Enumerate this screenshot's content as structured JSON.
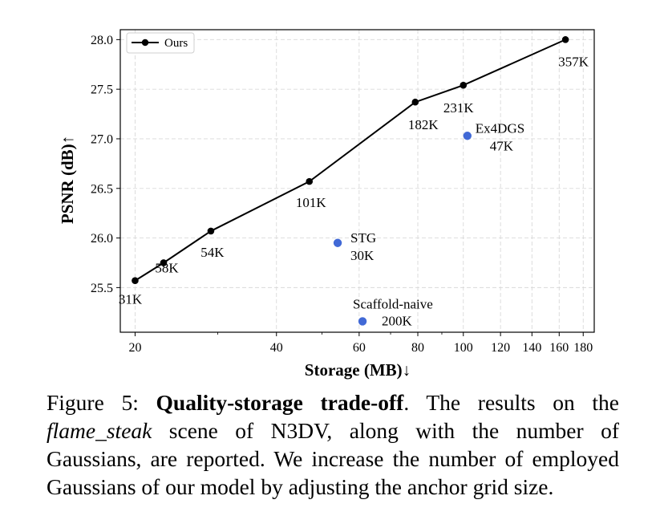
{
  "chart_data": {
    "type": "line",
    "xlabel": "Storage (MB)↓",
    "ylabel": "PSNR (dB)↑",
    "xscale": "log",
    "xlim": [
      18.6,
      190
    ],
    "ylim": [
      25.05,
      28.1
    ],
    "xticks": [
      20,
      40,
      60,
      80,
      100,
      120,
      140,
      160,
      180
    ],
    "xtick_labels": [
      "20",
      "40",
      "60",
      "80",
      "100",
      "120",
      "140",
      "160",
      "180"
    ],
    "yticks": [
      25.5,
      26.0,
      26.5,
      27.0,
      27.5,
      28.0
    ],
    "ytick_labels": [
      "25.5",
      "26.0",
      "26.5",
      "27.0",
      "27.5",
      "28.0"
    ],
    "grid": true,
    "legend_position": "top-left",
    "series": [
      {
        "name": "Ours",
        "color": "#000000",
        "points": [
          {
            "x": 20,
            "y": 25.57,
            "label": "31K"
          },
          {
            "x": 23,
            "y": 25.75,
            "label": "58K"
          },
          {
            "x": 29,
            "y": 26.07,
            "label": "54K"
          },
          {
            "x": 47,
            "y": 26.57,
            "label": "101K"
          },
          {
            "x": 79,
            "y": 27.37,
            "label": "182K"
          },
          {
            "x": 100,
            "y": 27.54,
            "label": "231K"
          },
          {
            "x": 165,
            "y": 28.0,
            "label": "357K"
          }
        ]
      }
    ],
    "others": [
      {
        "name": "Ex4DGS",
        "x": 102,
        "y": 27.03,
        "label": "47K",
        "color": "#4169d6"
      },
      {
        "name": "STG",
        "x": 54,
        "y": 25.95,
        "label": "30K",
        "color": "#4169d6"
      },
      {
        "name": "Scaffold-naive",
        "x": 61,
        "y": 25.16,
        "label": "200K",
        "color": "#4169d6"
      }
    ]
  },
  "caption": {
    "prefix": "Figure 5: ",
    "bold": "Quality-storage trade-off",
    "part1": ". The results on the ",
    "italic": "flame_steak",
    "part2": " scene of N3DV, along with the number of Gaussians, are reported. We increase the number of employed Gaussians of our model by adjusting the anchor grid size."
  }
}
